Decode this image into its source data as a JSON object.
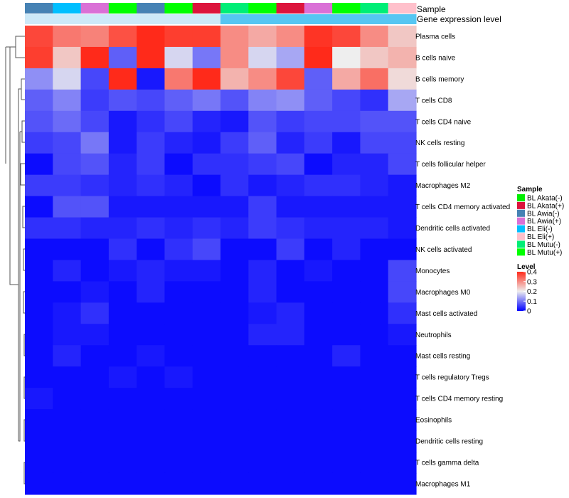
{
  "chart_data": {
    "type": "heatmap",
    "annotations": {
      "sample_label": "Sample",
      "expression_label": "Gene expression level",
      "sample_row": [
        "BL Awia(-)",
        "BL Eli(-)",
        "BL Awia(+)",
        "BL Mutu(+)",
        "BL Awia(-)",
        "BL Mutu(+)",
        "BL Akata(+)",
        "BL Mutu(-)",
        "BL Mutu(+)",
        "BL Akata(+)",
        "BL Awia(+)",
        "BL Mutu(+)",
        "BL Mutu(-)",
        "BL Eli(+)"
      ],
      "expression_row": [
        0.08,
        0.08,
        0.08,
        0.08,
        0.08,
        0.08,
        0.08,
        0.3,
        0.3,
        0.3,
        0.3,
        0.3,
        0.3,
        0.3
      ]
    },
    "rows": [
      "Plasma cells",
      "B cells naive",
      "B cells memory",
      "T cells CD8",
      "T cells CD4 naive",
      "NK cells resting",
      "T cells follicular helper",
      "Macrophages M2",
      "T cells CD4 memory activated",
      "Dendritic cells activated",
      "NK cells activated",
      "Monocytes",
      "Macrophages M0",
      "Mast cells activated",
      "Neutrophils",
      "Mast cells resting",
      "T cells regulatory  Tregs",
      "T cells CD4 memory resting",
      "Eosinophils",
      "Dendritic cells resting",
      "T cells gamma delta",
      "Macrophages M1"
    ],
    "values": [
      [
        0.37,
        0.32,
        0.31,
        0.36,
        0.4,
        0.38,
        0.38,
        0.3,
        0.27,
        0.3,
        0.39,
        0.37,
        0.3,
        0.24
      ],
      [
        0.38,
        0.24,
        0.42,
        0.08,
        0.42,
        0.18,
        0.1,
        0.3,
        0.18,
        0.14,
        0.42,
        0.2,
        0.24,
        0.26
      ],
      [
        0.12,
        0.18,
        0.06,
        0.42,
        0.02,
        0.32,
        0.42,
        0.26,
        0.3,
        0.37,
        0.08,
        0.27,
        0.33,
        0.22
      ],
      [
        0.08,
        0.11,
        0.05,
        0.07,
        0.06,
        0.08,
        0.1,
        0.07,
        0.11,
        0.12,
        0.08,
        0.06,
        0.04,
        0.14
      ],
      [
        0.07,
        0.09,
        0.06,
        0.02,
        0.04,
        0.06,
        0.03,
        0.02,
        0.07,
        0.05,
        0.06,
        0.06,
        0.07,
        0.07
      ],
      [
        0.05,
        0.06,
        0.1,
        0.02,
        0.05,
        0.03,
        0.02,
        0.05,
        0.08,
        0.03,
        0.05,
        0.02,
        0.06,
        0.06
      ],
      [
        0.01,
        0.06,
        0.07,
        0.03,
        0.05,
        0.01,
        0.04,
        0.04,
        0.05,
        0.06,
        0.01,
        0.03,
        0.03,
        0.06
      ],
      [
        0.05,
        0.05,
        0.04,
        0.03,
        0.04,
        0.03,
        0.01,
        0.04,
        0.02,
        0.03,
        0.04,
        0.04,
        0.03,
        0.02
      ],
      [
        0.01,
        0.07,
        0.07,
        0.02,
        0.02,
        0.02,
        0.02,
        0.02,
        0.05,
        0.02,
        0.02,
        0.02,
        0.02,
        0.02
      ],
      [
        0.04,
        0.04,
        0.03,
        0.03,
        0.04,
        0.03,
        0.04,
        0.03,
        0.05,
        0.04,
        0.03,
        0.03,
        0.03,
        0.02
      ],
      [
        0.01,
        0.01,
        0.01,
        0.04,
        0.01,
        0.04,
        0.06,
        0.01,
        0.01,
        0.05,
        0.01,
        0.03,
        0.01,
        0.01
      ],
      [
        0.01,
        0.03,
        0.01,
        0.02,
        0.03,
        0.02,
        0.02,
        0.01,
        0.03,
        0.01,
        0.02,
        0.01,
        0.01,
        0.06
      ],
      [
        0.01,
        0.01,
        0.02,
        0.01,
        0.03,
        0.01,
        0.01,
        0.01,
        0.03,
        0.01,
        0.01,
        0.01,
        0.01,
        0.06
      ],
      [
        0.01,
        0.02,
        0.04,
        0.01,
        0.01,
        0.01,
        0.01,
        0.01,
        0.02,
        0.03,
        0.01,
        0.01,
        0.01,
        0.04
      ],
      [
        0.01,
        0.02,
        0.02,
        0.01,
        0.01,
        0.01,
        0.01,
        0.01,
        0.03,
        0.03,
        0.01,
        0.01,
        0.01,
        0.02
      ],
      [
        0.01,
        0.03,
        0.01,
        0.01,
        0.02,
        0.01,
        0.01,
        0.01,
        0.01,
        0.01,
        0.01,
        0.03,
        0.01,
        0.01
      ],
      [
        0.01,
        0.01,
        0.01,
        0.02,
        0.01,
        0.02,
        0.01,
        0.01,
        0.01,
        0.01,
        0.01,
        0.01,
        0.01,
        0.01
      ],
      [
        0.02,
        0.01,
        0.01,
        0.01,
        0.01,
        0.01,
        0.01,
        0.01,
        0.01,
        0.01,
        0.01,
        0.01,
        0.01,
        0.01
      ],
      [
        0.01,
        0.01,
        0.01,
        0.01,
        0.01,
        0.01,
        0.01,
        0.01,
        0.01,
        0.01,
        0.01,
        0.01,
        0.01,
        0.01
      ],
      [
        0.01,
        0.01,
        0.01,
        0.01,
        0.01,
        0.01,
        0.01,
        0.01,
        0.01,
        0.01,
        0.01,
        0.01,
        0.01,
        0.01
      ],
      [
        0.01,
        0.01,
        0.01,
        0.01,
        0.01,
        0.01,
        0.01,
        0.01,
        0.01,
        0.01,
        0.01,
        0.01,
        0.01,
        0.01
      ],
      [
        0.01,
        0.01,
        0.01,
        0.01,
        0.01,
        0.01,
        0.01,
        0.01,
        0.01,
        0.01,
        0.01,
        0.01,
        0.01,
        0.01
      ]
    ],
    "color_scale": {
      "domain": [
        0,
        0.2,
        0.4
      ],
      "colors": [
        "#0000ff",
        "#eeeeee",
        "#ff2a1a"
      ]
    },
    "legend_sample": {
      "title": "Sample",
      "entries": [
        {
          "label": "BL Akata(-)",
          "color": "#00ee00"
        },
        {
          "label": "BL Akata(+)",
          "color": "#dc143c"
        },
        {
          "label": "BL Awia(-)",
          "color": "#4682b4"
        },
        {
          "label": "BL Awia(+)",
          "color": "#da70d6"
        },
        {
          "label": "BL Eli(-)",
          "color": "#00bfff"
        },
        {
          "label": "BL Eli(+)",
          "color": "#ffc0cb"
        },
        {
          "label": "BL Mutu(-)",
          "color": "#00ee76"
        },
        {
          "label": "BL Mutu(+)",
          "color": "#00ff00"
        }
      ]
    },
    "legend_level": {
      "title": "Level",
      "ticks": [
        {
          "value": 0.4,
          "label": "0.4"
        },
        {
          "value": 0.3,
          "label": "0.3"
        },
        {
          "value": 0.2,
          "label": "0.2"
        },
        {
          "value": 0.1,
          "label": "0.1"
        },
        {
          "value": 0,
          "label": "0"
        }
      ]
    }
  }
}
